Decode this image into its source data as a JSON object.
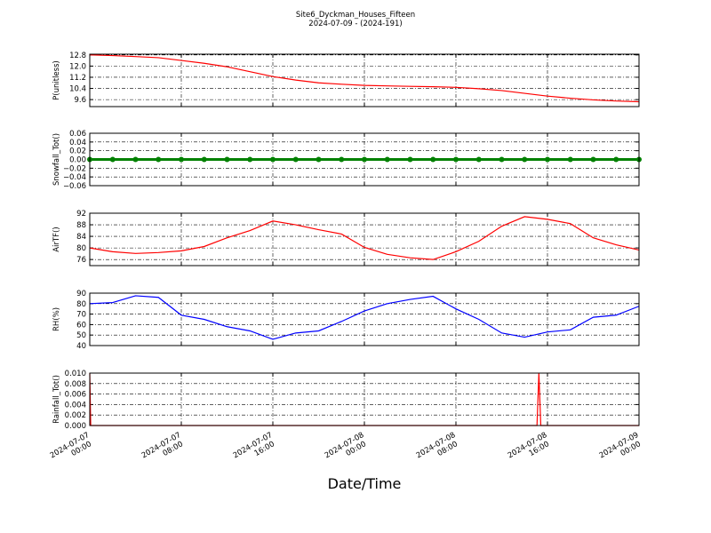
{
  "chart_data": [
    {
      "type": "line",
      "title": "Site6_Dyckman_Houses_Fifteen",
      "subtitle": "2024-07-09 - (2024-191)",
      "ylabel": "P(unitless)",
      "x": [
        "2024-07-07 00:00",
        "2024-07-07 02:00",
        "2024-07-07 04:00",
        "2024-07-07 06:00",
        "2024-07-07 08:00",
        "2024-07-07 10:00",
        "2024-07-07 12:00",
        "2024-07-07 14:00",
        "2024-07-07 16:00",
        "2024-07-07 18:00",
        "2024-07-07 20:00",
        "2024-07-07 22:00",
        "2024-07-08 00:00",
        "2024-07-08 02:00",
        "2024-07-08 04:00",
        "2024-07-08 06:00",
        "2024-07-08 08:00",
        "2024-07-08 10:00",
        "2024-07-08 12:00",
        "2024-07-08 14:00",
        "2024-07-08 16:00",
        "2024-07-08 18:00",
        "2024-07-08 20:00",
        "2024-07-08 22:00",
        "2024-07-09 00:00"
      ],
      "series": [
        {
          "name": "P",
          "color": "#ff0000",
          "values": [
            12.8,
            12.75,
            12.68,
            12.6,
            12.4,
            12.2,
            11.95,
            11.6,
            11.25,
            11.0,
            10.8,
            10.7,
            10.62,
            10.58,
            10.55,
            10.52,
            10.48,
            10.38,
            10.25,
            10.05,
            9.85,
            9.7,
            9.58,
            9.5,
            9.45
          ]
        }
      ],
      "xlim": [
        "2024-07-07 00:00",
        "2024-07-09 00:00"
      ],
      "xticks": [
        "2024-07-07 00:00",
        "2024-07-07 08:00",
        "2024-07-07 16:00",
        "2024-07-08 00:00",
        "2024-07-08 08:00",
        "2024-07-08 16:00",
        "2024-07-09 00:00"
      ],
      "ylim": [
        9.1,
        12.85
      ],
      "yticks": [
        9.6,
        10.4,
        11.2,
        {
          "value": 12,
          "label": "12.0"
        },
        12.8
      ],
      "grid": true
    },
    {
      "type": "line",
      "ylabel": "Snowfall_Tot()",
      "x": [
        "2024-07-07 00:00",
        "2024-07-07 02:00",
        "2024-07-07 04:00",
        "2024-07-07 06:00",
        "2024-07-07 08:00",
        "2024-07-07 10:00",
        "2024-07-07 12:00",
        "2024-07-07 14:00",
        "2024-07-07 16:00",
        "2024-07-07 18:00",
        "2024-07-07 20:00",
        "2024-07-07 22:00",
        "2024-07-08 00:00",
        "2024-07-08 02:00",
        "2024-07-08 04:00",
        "2024-07-08 06:00",
        "2024-07-08 08:00",
        "2024-07-08 10:00",
        "2024-07-08 12:00",
        "2024-07-08 14:00",
        "2024-07-08 16:00",
        "2024-07-08 18:00",
        "2024-07-08 20:00",
        "2024-07-08 22:00",
        "2024-07-09 00:00"
      ],
      "series": [
        {
          "name": "Snowfall_Tot",
          "color": "#008000",
          "marker": true,
          "values": [
            0,
            0,
            0,
            0,
            0,
            0,
            0,
            0,
            0,
            0,
            0,
            0,
            0,
            0,
            0,
            0,
            0,
            0,
            0,
            0,
            0,
            0,
            0,
            0,
            0
          ]
        }
      ],
      "xlim": [
        "2024-07-07 00:00",
        "2024-07-09 00:00"
      ],
      "xticks": [
        "2024-07-07 00:00",
        "2024-07-07 08:00",
        "2024-07-07 16:00",
        "2024-07-08 00:00",
        "2024-07-08 08:00",
        "2024-07-08 16:00",
        "2024-07-09 00:00"
      ],
      "ylim": [
        -0.06,
        0.06
      ],
      "yticks": [
        {
          "value": -0.06,
          "label": "−0.06"
        },
        {
          "value": -0.04,
          "label": "−0.04"
        },
        {
          "value": -0.02,
          "label": "−0.02"
        },
        {
          "value": 0,
          "label": "0.00"
        },
        0.02,
        0.04,
        0.06
      ],
      "grid": true
    },
    {
      "type": "line",
      "ylabel": "AirTF()",
      "x": [
        "2024-07-07 00:00",
        "2024-07-07 02:00",
        "2024-07-07 04:00",
        "2024-07-07 06:00",
        "2024-07-07 08:00",
        "2024-07-07 10:00",
        "2024-07-07 12:00",
        "2024-07-07 14:00",
        "2024-07-07 16:00",
        "2024-07-07 18:00",
        "2024-07-07 20:00",
        "2024-07-07 22:00",
        "2024-07-08 00:00",
        "2024-07-08 02:00",
        "2024-07-08 04:00",
        "2024-07-08 06:00",
        "2024-07-08 08:00",
        "2024-07-08 10:00",
        "2024-07-08 12:00",
        "2024-07-08 14:00",
        "2024-07-08 16:00",
        "2024-07-08 18:00",
        "2024-07-08 20:00",
        "2024-07-08 22:00",
        "2024-07-09 00:00"
      ],
      "series": [
        {
          "name": "AirTF",
          "color": "#ff0000",
          "values": [
            80,
            78.7,
            78.1,
            78.4,
            79,
            80.5,
            83.5,
            86,
            89.3,
            88,
            86.3,
            84.8,
            80.2,
            77.8,
            76.6,
            76,
            78.7,
            82.3,
            87.5,
            90.8,
            89.9,
            88.4,
            83.5,
            81.1,
            79.3
          ]
        }
      ],
      "xlim": [
        "2024-07-07 00:00",
        "2024-07-09 00:00"
      ],
      "xticks": [
        "2024-07-07 00:00",
        "2024-07-07 08:00",
        "2024-07-07 16:00",
        "2024-07-08 00:00",
        "2024-07-08 08:00",
        "2024-07-08 16:00",
        "2024-07-09 00:00"
      ],
      "ylim": [
        73.9,
        92
      ],
      "yticks": [
        76,
        80,
        84,
        88,
        92
      ],
      "grid": true
    },
    {
      "type": "line",
      "ylabel": "RH(%)",
      "x": [
        "2024-07-07 00:00",
        "2024-07-07 02:00",
        "2024-07-07 04:00",
        "2024-07-07 06:00",
        "2024-07-07 08:00",
        "2024-07-07 10:00",
        "2024-07-07 12:00",
        "2024-07-07 14:00",
        "2024-07-07 16:00",
        "2024-07-07 18:00",
        "2024-07-07 20:00",
        "2024-07-07 22:00",
        "2024-07-08 00:00",
        "2024-07-08 02:00",
        "2024-07-08 04:00",
        "2024-07-08 06:00",
        "2024-07-08 08:00",
        "2024-07-08 10:00",
        "2024-07-08 12:00",
        "2024-07-08 14:00",
        "2024-07-08 16:00",
        "2024-07-08 18:00",
        "2024-07-08 20:00",
        "2024-07-08 22:00",
        "2024-07-09 00:00"
      ],
      "series": [
        {
          "name": "RH",
          "color": "#0000ff",
          "values": [
            80,
            81,
            87.5,
            86,
            69,
            65,
            58,
            54,
            46,
            52,
            54,
            63,
            73,
            80,
            84,
            87,
            75,
            65,
            52,
            48,
            53,
            55,
            67,
            69,
            77.5
          ]
        }
      ],
      "xlim": [
        "2024-07-07 00:00",
        "2024-07-09 00:00"
      ],
      "xticks": [
        "2024-07-07 00:00",
        "2024-07-07 08:00",
        "2024-07-07 16:00",
        "2024-07-08 00:00",
        "2024-07-08 08:00",
        "2024-07-08 16:00",
        "2024-07-09 00:00"
      ],
      "ylim": [
        40,
        90
      ],
      "yticks": [
        40,
        50,
        60,
        70,
        80,
        90
      ],
      "grid": true
    },
    {
      "type": "line",
      "ylabel": "Rainfall_Tot()",
      "xlabel": "Date/Time",
      "x": [
        "2024-07-07 00:00",
        "2024-07-07 00:05",
        "2024-07-08 15:05",
        "2024-07-08 15:15",
        "2024-07-08 15:25",
        "2024-07-09 00:00"
      ],
      "series": [
        {
          "name": "Rainfall_Tot",
          "color": "#ff0000",
          "values": [
            0.01,
            0,
            0,
            0.01,
            0,
            0
          ]
        }
      ],
      "xlim": [
        "2024-07-07 00:00",
        "2024-07-09 00:00"
      ],
      "xticks": [
        "2024-07-07 00:00",
        "2024-07-07 08:00",
        "2024-07-07 16:00",
        "2024-07-08 00:00",
        "2024-07-08 08:00",
        "2024-07-08 16:00",
        "2024-07-09 00:00"
      ],
      "xtick_labels": true,
      "ylim": [
        0,
        0.01
      ],
      "yticks": [
        {
          "value": 0,
          "label": "0.000"
        },
        0.002,
        0.004,
        0.006,
        0.008,
        {
          "value": 0.01,
          "label": "0.010"
        }
      ],
      "grid": true
    }
  ]
}
